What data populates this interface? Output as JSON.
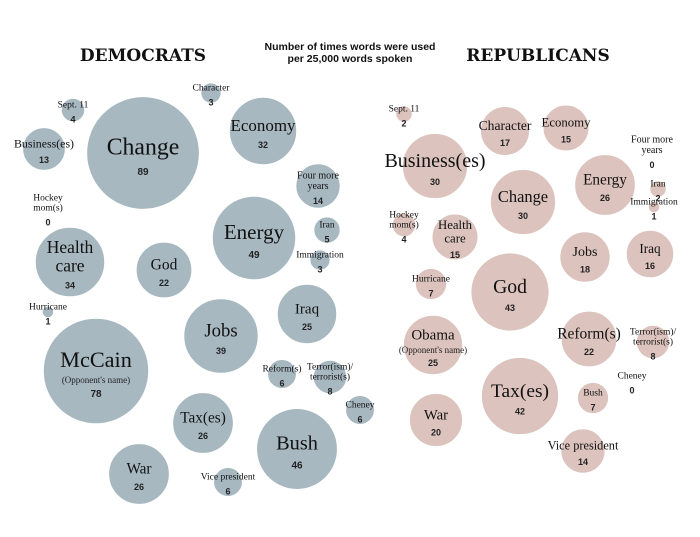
{
  "chart_data": {
    "type": "bubble",
    "subtitle_lines": [
      "Number of times words were used",
      "per 25,000 words spoken"
    ],
    "colors": {
      "democrats": "#a7b8c1",
      "republicans": "#dcc3bd"
    },
    "groups": [
      {
        "name": "DEMOCRATS",
        "items": [
          {
            "word": "Change",
            "value": 89
          },
          {
            "word": "McCain",
            "value": 78,
            "note": "(Opponent's name)"
          },
          {
            "word": "Energy",
            "value": 49
          },
          {
            "word": "Bush",
            "value": 46
          },
          {
            "word": "Jobs",
            "value": 39
          },
          {
            "word": "Health care",
            "value": 34
          },
          {
            "word": "Economy",
            "value": 32
          },
          {
            "word": "Tax(es)",
            "value": 26
          },
          {
            "word": "War",
            "value": 26
          },
          {
            "word": "Iraq",
            "value": 25
          },
          {
            "word": "God",
            "value": 22
          },
          {
            "word": "Four more years",
            "value": 14
          },
          {
            "word": "Business(es)",
            "value": 13
          },
          {
            "word": "Reform(s)",
            "value": 6
          },
          {
            "word": "Cheney",
            "value": 6
          },
          {
            "word": "Vice president",
            "value": 6
          },
          {
            "word": "Terror(ism)/ terrorist(s)",
            "value": 8
          },
          {
            "word": "Iran",
            "value": 5
          },
          {
            "word": "Immigration",
            "value": 3
          },
          {
            "word": "Character",
            "value": 3
          },
          {
            "word": "Sept. 11",
            "value": 4
          },
          {
            "word": "Hurricane",
            "value": 1
          },
          {
            "word": "Hockey mom(s)",
            "value": 0
          }
        ]
      },
      {
        "name": "REPUBLICANS",
        "items": [
          {
            "word": "God",
            "value": 43
          },
          {
            "word": "Tax(es)",
            "value": 42
          },
          {
            "word": "Business(es)",
            "value": 30
          },
          {
            "word": "Change",
            "value": 30
          },
          {
            "word": "Energy",
            "value": 26
          },
          {
            "word": "Obama",
            "value": 25,
            "note": "(Opponent's name)"
          },
          {
            "word": "Reform(s)",
            "value": 22
          },
          {
            "word": "War",
            "value": 20
          },
          {
            "word": "Jobs",
            "value": 18
          },
          {
            "word": "Character",
            "value": 17
          },
          {
            "word": "Iraq",
            "value": 16
          },
          {
            "word": "Economy",
            "value": 15
          },
          {
            "word": "Health care",
            "value": 15
          },
          {
            "word": "Vice president",
            "value": 14
          },
          {
            "word": "Terror(ism)/ terrorist(s)",
            "value": 8
          },
          {
            "word": "Hurricane",
            "value": 7
          },
          {
            "word": "Bush",
            "value": 7
          },
          {
            "word": "Hockey mom(s)",
            "value": 4
          },
          {
            "word": "Sept. 11",
            "value": 2
          },
          {
            "word": "Iran",
            "value": 2
          },
          {
            "word": "Immigration",
            "value": 1
          },
          {
            "word": "Four more years",
            "value": 0
          },
          {
            "word": "Cheney",
            "value": 0
          }
        ]
      }
    ]
  }
}
